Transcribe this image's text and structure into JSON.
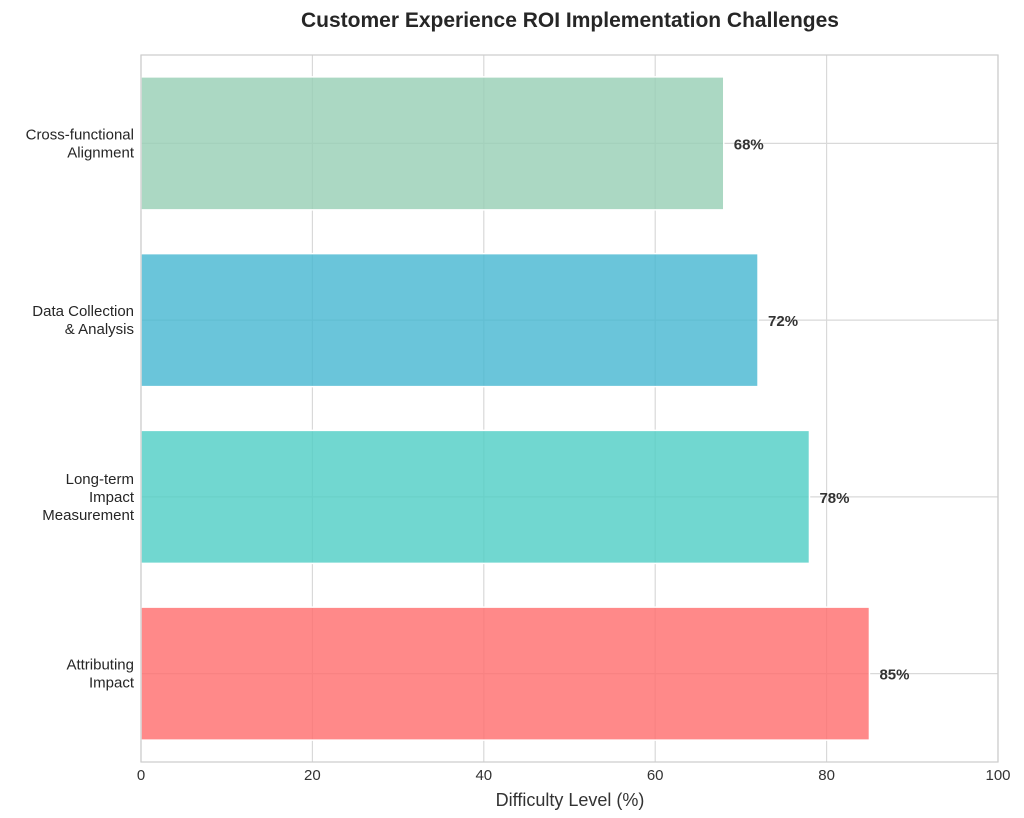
{
  "chart_data": {
    "type": "bar",
    "orientation": "horizontal",
    "title": "Customer Experience ROI Implementation Challenges",
    "xlabel": "Difficulty Level (%)",
    "ylabel": "",
    "xlim": [
      0,
      100
    ],
    "xticks": [
      "0",
      "20",
      "40",
      "60",
      "80",
      "100"
    ],
    "grid": true,
    "categories": [
      [
        "Attributing",
        "Impact"
      ],
      [
        "Long-term",
        "Impact",
        "Measurement"
      ],
      [
        "Data Collection",
        "& Analysis"
      ],
      [
        "Cross-functional",
        "Alignment"
      ]
    ],
    "values": [
      85,
      78,
      72,
      68
    ],
    "value_labels": [
      "85%",
      "78%",
      "72%",
      "68%"
    ],
    "colors": [
      "#ff6b6b",
      "#4ecdc4",
      "#45b7d1",
      "#96ceb4"
    ]
  }
}
